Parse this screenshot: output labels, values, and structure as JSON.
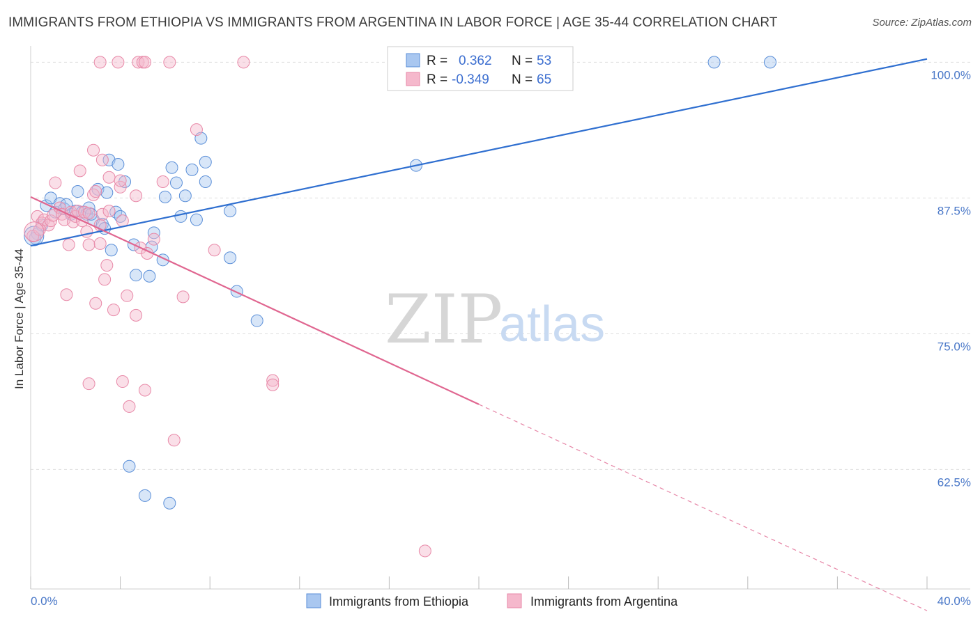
{
  "title": "IMMIGRANTS FROM ETHIOPIA VS IMMIGRANTS FROM ARGENTINA IN LABOR FORCE | AGE 35-44 CORRELATION CHART",
  "source": "Source: ZipAtlas.com",
  "watermark": {
    "zip": "ZIP",
    "atlas": "atlas"
  },
  "colors": {
    "ethiopia_fill": "#a9c7f0",
    "ethiopia_stroke": "#5b8fd8",
    "ethiopia_line": "#2f6fd0",
    "argentina_fill": "#f5b8cc",
    "argentina_stroke": "#e889a8",
    "argentina_line": "#e06690",
    "grid": "#dddddd",
    "tick": "#4a78c8"
  },
  "legend": {
    "rows": [
      {
        "r_label": "R =",
        "r_value": "0.362",
        "n_label": "N =",
        "n_value": "53"
      },
      {
        "r_label": "R =",
        "r_value": "-0.349",
        "n_label": "N =",
        "n_value": "65"
      }
    ]
  },
  "chart_data": {
    "type": "scatter",
    "title": "IMMIGRANTS FROM ETHIOPIA VS IMMIGRANTS FROM ARGENTINA IN LABOR FORCE | AGE 35-44 CORRELATION CHART",
    "xlabel": "",
    "ylabel": "In Labor Force | Age 35-44",
    "xlim": [
      0,
      40
    ],
    "ylim": [
      51.5,
      101.5
    ],
    "x_ticks": [
      {
        "value": 0,
        "label": "0.0%"
      },
      {
        "value": 40,
        "label": "40.0%"
      }
    ],
    "y_ticks": [
      {
        "value": 100,
        "label": "100.0%"
      },
      {
        "value": 87.5,
        "label": "87.5%"
      },
      {
        "value": 75,
        "label": "75.0%"
      },
      {
        "value": 62.5,
        "label": "62.5%"
      }
    ],
    "series": [
      {
        "name": "Immigrants from Ethiopia",
        "color": "#5b8fd8",
        "r": 0.362,
        "n": 53,
        "trend": {
          "x": [
            0,
            40
          ],
          "y": [
            83.1,
            100.3
          ]
        },
        "points": [
          [
            0.3,
            84.2
          ],
          [
            0.5,
            85.0
          ],
          [
            0.7,
            86.8
          ],
          [
            0.9,
            87.5
          ],
          [
            1.1,
            86.2
          ],
          [
            1.3,
            87.0
          ],
          [
            1.5,
            86.5
          ],
          [
            1.8,
            86.0
          ],
          [
            2.0,
            86.3
          ],
          [
            2.1,
            88.1
          ],
          [
            2.3,
            86.2
          ],
          [
            2.5,
            86.0
          ],
          [
            2.6,
            86.6
          ],
          [
            2.8,
            85.5
          ],
          [
            3.0,
            88.3
          ],
          [
            3.2,
            85.1
          ],
          [
            3.4,
            88.0
          ],
          [
            3.5,
            91.0
          ],
          [
            3.6,
            82.7
          ],
          [
            3.8,
            86.2
          ],
          [
            3.9,
            90.6
          ],
          [
            4.0,
            85.8
          ],
          [
            4.2,
            89.0
          ],
          [
            4.6,
            83.2
          ],
          [
            4.7,
            80.4
          ],
          [
            5.1,
            60.1
          ],
          [
            5.3,
            80.3
          ],
          [
            5.4,
            83.0
          ],
          [
            5.5,
            84.3
          ],
          [
            5.9,
            81.8
          ],
          [
            6.0,
            87.6
          ],
          [
            6.3,
            90.3
          ],
          [
            6.5,
            88.9
          ],
          [
            6.7,
            85.8
          ],
          [
            6.9,
            87.7
          ],
          [
            7.2,
            90.1
          ],
          [
            7.4,
            85.5
          ],
          [
            7.6,
            93.0
          ],
          [
            7.8,
            90.8
          ],
          [
            7.8,
            89.0
          ],
          [
            8.9,
            86.3
          ],
          [
            8.9,
            82.0
          ],
          [
            9.2,
            78.9
          ],
          [
            10.1,
            76.2
          ],
          [
            4.4,
            62.8
          ],
          [
            6.2,
            59.4
          ],
          [
            17.2,
            90.5
          ],
          [
            30.5,
            100.0
          ],
          [
            33.0,
            100.0
          ],
          [
            0.2,
            83.8
          ],
          [
            1.6,
            86.9
          ],
          [
            2.7,
            86.0
          ],
          [
            3.3,
            84.7
          ]
        ]
      },
      {
        "name": "Immigrants from Argentina",
        "color": "#e889a8",
        "r": -0.349,
        "n": 65,
        "trend": {
          "x": [
            0,
            20
          ],
          "y": [
            87.6,
            68.5
          ]
        },
        "trend_dashed": {
          "x": [
            20,
            40
          ],
          "y": [
            68.5,
            49.5
          ]
        },
        "points": [
          [
            0.1,
            84.0
          ],
          [
            0.3,
            85.8
          ],
          [
            0.5,
            85.2
          ],
          [
            0.6,
            85.5
          ],
          [
            0.8,
            85.0
          ],
          [
            0.9,
            85.4
          ],
          [
            1.0,
            85.9
          ],
          [
            1.1,
            88.9
          ],
          [
            1.3,
            86.6
          ],
          [
            1.4,
            86.0
          ],
          [
            1.5,
            85.5
          ],
          [
            1.6,
            78.6
          ],
          [
            1.7,
            83.2
          ],
          [
            1.8,
            86.2
          ],
          [
            1.9,
            85.3
          ],
          [
            2.0,
            85.8
          ],
          [
            2.1,
            86.3
          ],
          [
            2.2,
            90.0
          ],
          [
            2.3,
            85.4
          ],
          [
            2.4,
            86.2
          ],
          [
            2.5,
            84.4
          ],
          [
            2.6,
            83.2
          ],
          [
            2.6,
            70.4
          ],
          [
            2.6,
            86.1
          ],
          [
            2.8,
            87.8
          ],
          [
            2.9,
            88.1
          ],
          [
            2.8,
            91.9
          ],
          [
            2.9,
            77.8
          ],
          [
            3.1,
            85.0
          ],
          [
            3.1,
            83.3
          ],
          [
            3.1,
            100.0
          ],
          [
            3.2,
            86.0
          ],
          [
            3.2,
            91.0
          ],
          [
            3.3,
            80.0
          ],
          [
            3.4,
            81.3
          ],
          [
            3.5,
            86.3
          ],
          [
            3.5,
            89.4
          ],
          [
            3.7,
            77.2
          ],
          [
            3.9,
            100.0
          ],
          [
            4.0,
            88.5
          ],
          [
            4.0,
            89.1
          ],
          [
            4.1,
            70.6
          ],
          [
            4.1,
            85.4
          ],
          [
            4.3,
            78.5
          ],
          [
            4.4,
            68.3
          ],
          [
            4.7,
            87.7
          ],
          [
            4.7,
            76.7
          ],
          [
            4.8,
            100.0
          ],
          [
            4.9,
            82.9
          ],
          [
            5.0,
            100.0
          ],
          [
            5.1,
            69.8
          ],
          [
            5.1,
            100.0
          ],
          [
            5.2,
            82.4
          ],
          [
            5.5,
            83.7
          ],
          [
            5.9,
            89.0
          ],
          [
            6.2,
            100.0
          ],
          [
            6.4,
            65.2
          ],
          [
            6.8,
            78.4
          ],
          [
            7.4,
            93.8
          ],
          [
            8.2,
            82.7
          ],
          [
            9.5,
            100.0
          ],
          [
            10.8,
            70.7
          ],
          [
            10.8,
            70.3
          ],
          [
            17.6,
            55.0
          ],
          [
            0.4,
            84.6
          ]
        ]
      }
    ]
  },
  "bottom_legend": {
    "items": [
      {
        "label": "Immigrants from Ethiopia"
      },
      {
        "label": "Immigrants from Argentina"
      }
    ]
  }
}
